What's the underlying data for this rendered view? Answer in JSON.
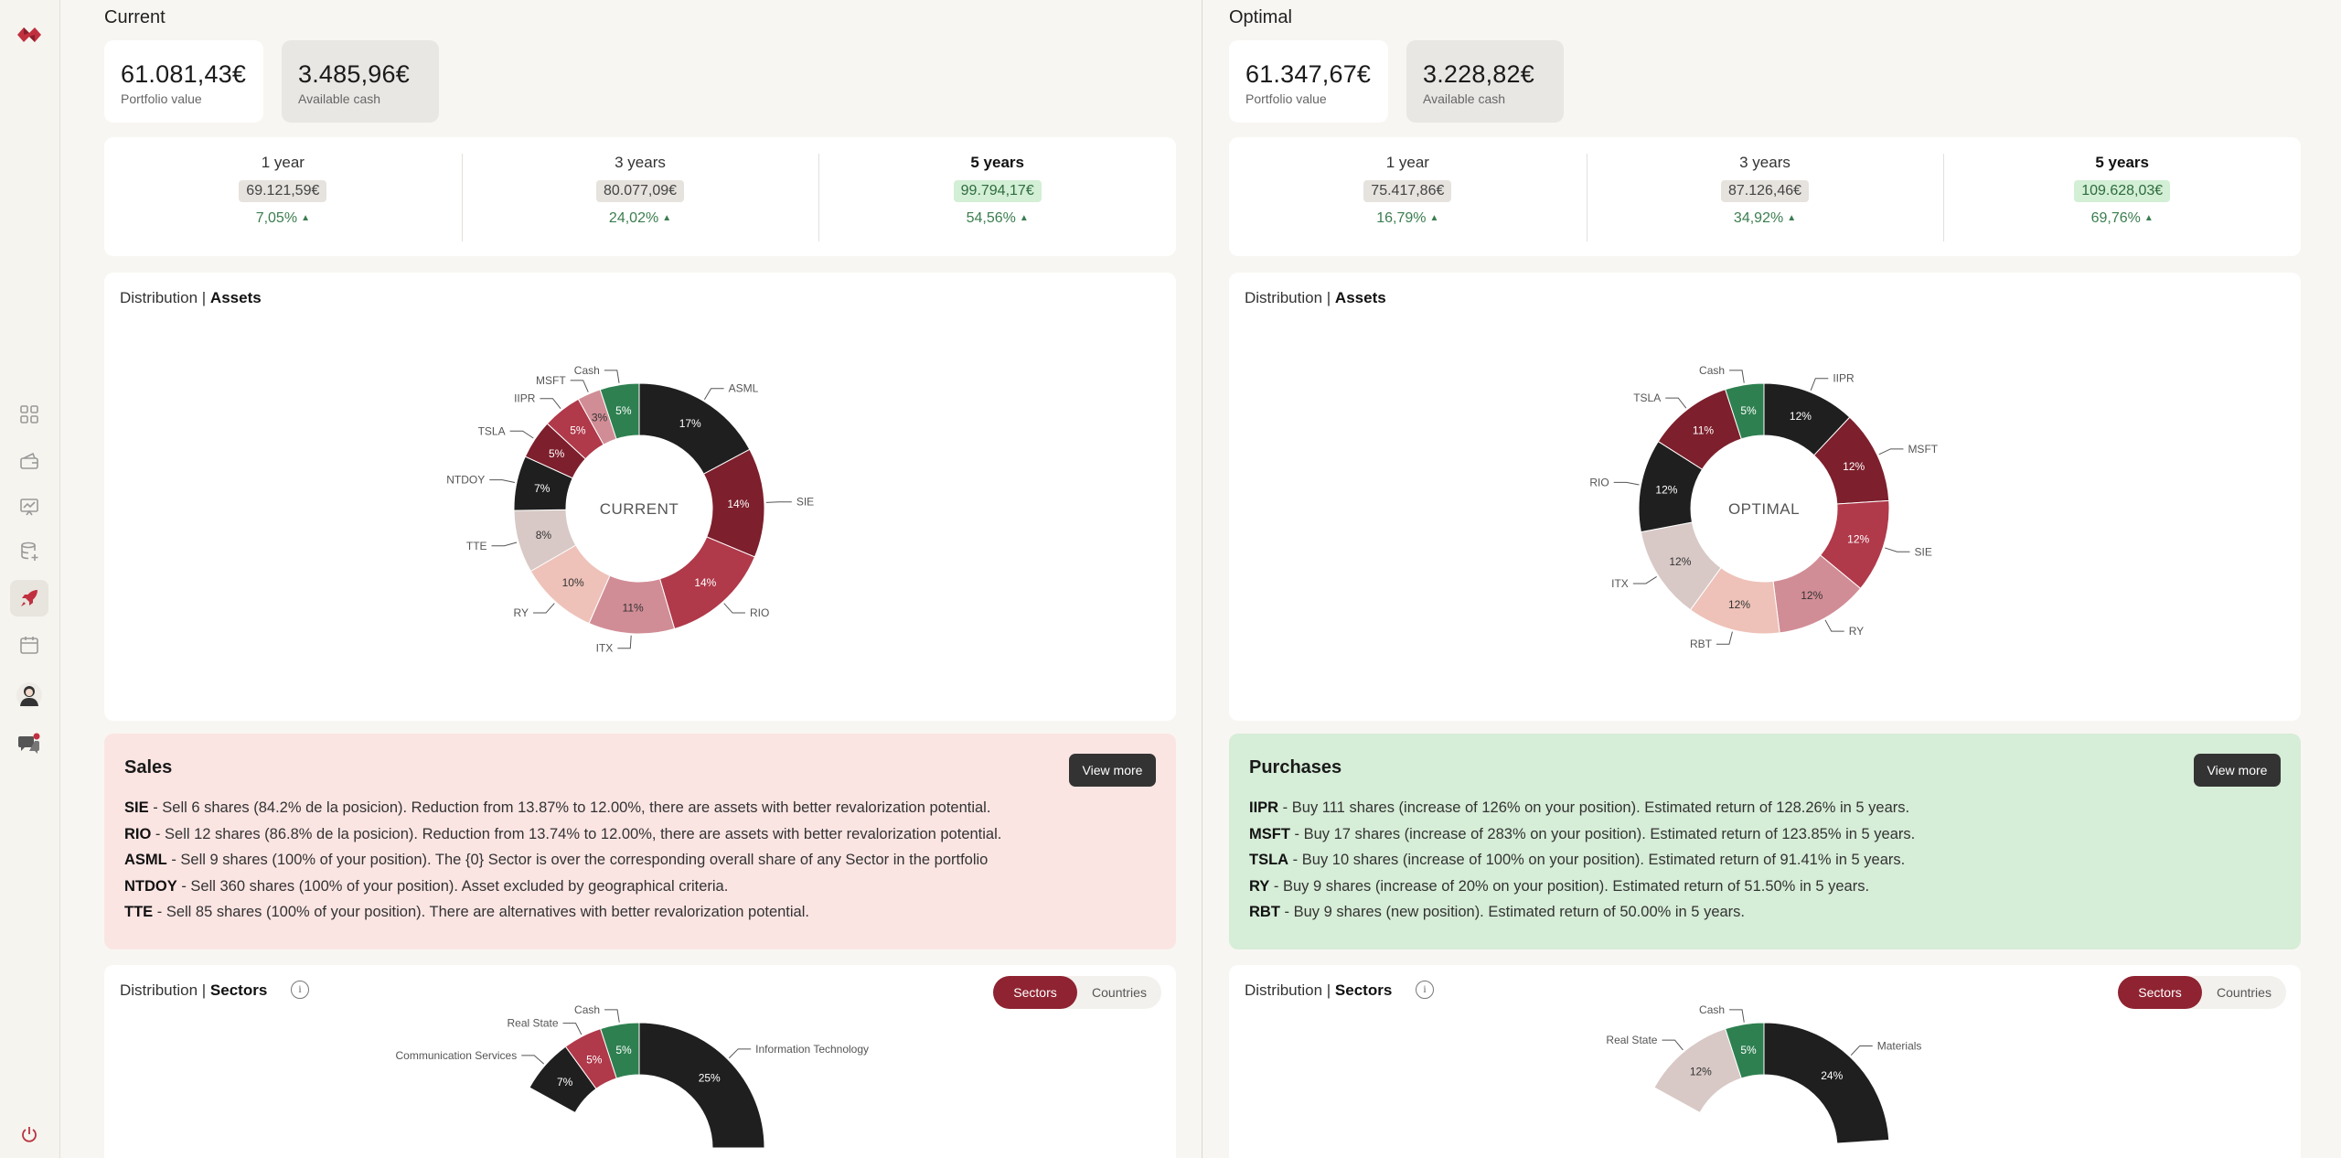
{
  "sidebar": {
    "items": [
      {
        "icon": "logo-icon"
      },
      {
        "icon": "dashboard-grid-icon"
      },
      {
        "icon": "wallet-icon"
      },
      {
        "icon": "presentation-chart-icon"
      },
      {
        "icon": "database-add-icon"
      },
      {
        "icon": "rocket-icon",
        "active": true
      },
      {
        "icon": "calendar-icon"
      },
      {
        "icon": "avatar-icon"
      },
      {
        "icon": "chat-icon"
      },
      {
        "icon": "power-icon"
      }
    ],
    "accent": "#b8333f"
  },
  "current": {
    "title": "Current",
    "portfolio_value": "61.081,43€",
    "portfolio_value_label": "Portfolio value",
    "available_cash": "3.485,96€",
    "available_cash_label": "Available cash",
    "projections": [
      {
        "label": "1 year",
        "value": "69.121,59€",
        "pct": "7,05%"
      },
      {
        "label": "3 years",
        "value": "80.077,09€",
        "pct": "24,02%"
      },
      {
        "label": "5 years",
        "value": "99.794,17€",
        "pct": "54,56%"
      }
    ],
    "assets_title_prefix": "Distribution |",
    "assets_title": "Assets",
    "sales": {
      "title": "Sales",
      "view_more": "View more",
      "items": [
        {
          "ticker": "SIE",
          "text": " - Sell 6 shares (84.2% de la posicion). Reduction from 13.87% to 12.00%, there are assets with better revalorization potential."
        },
        {
          "ticker": "RIO",
          "text": " - Sell 12 shares (86.8% de la posicion). Reduction from 13.74% to 12.00%, there are assets with better revalorization potential."
        },
        {
          "ticker": "ASML",
          "text": " - Sell 9 shares (100% of your position). The {0} Sector is over the corresponding overall share of any Sector in the portfolio"
        },
        {
          "ticker": "NTDOY",
          "text": " - Sell 360 shares (100% of your position). Asset excluded by geographical criteria."
        },
        {
          "ticker": "TTE",
          "text": " - Sell 85 shares (100% of your position). There are alternatives with better revalorization potential."
        }
      ]
    },
    "sectors_title_prefix": "Distribution |",
    "sectors_title": "Sectors",
    "info_icon": "i",
    "toggle": {
      "sectors": "Sectors",
      "countries": "Countries"
    }
  },
  "optimal": {
    "title": "Optimal",
    "portfolio_value": "61.347,67€",
    "portfolio_value_label": "Portfolio value",
    "available_cash": "3.228,82€",
    "available_cash_label": "Available cash",
    "projections": [
      {
        "label": "1 year",
        "value": "75.417,86€",
        "pct": "16,79%"
      },
      {
        "label": "3 years",
        "value": "87.126,46€",
        "pct": "34,92%"
      },
      {
        "label": "5 years",
        "value": "109.628,03€",
        "pct": "69,76%"
      }
    ],
    "assets_title_prefix": "Distribution |",
    "assets_title": "Assets",
    "purchases": {
      "title": "Purchases",
      "view_more": "View more",
      "items": [
        {
          "ticker": "IIPR",
          "text": " - Buy 111 shares (increase of 126% on your position). Estimated return of 128.26% in 5 years."
        },
        {
          "ticker": "MSFT",
          "text": " - Buy 17 shares (increase of 283% on your position). Estimated return of 123.85% in 5 years."
        },
        {
          "ticker": "TSLA",
          "text": " - Buy 10 shares (increase of 100% on your position). Estimated return of 91.41% in 5 years."
        },
        {
          "ticker": "RY",
          "text": " - Buy 9 shares (increase of 20% on your position). Estimated return of 51.50% in 5 years."
        },
        {
          "ticker": "RBT",
          "text": " - Buy 9 shares (new position). Estimated return of 50.00% in 5 years."
        }
      ]
    },
    "sectors_title_prefix": "Distribution |",
    "sectors_title": "Sectors",
    "info_icon": "i",
    "toggle": {
      "sectors": "Sectors",
      "countries": "Countries"
    }
  },
  "chart_data": [
    {
      "type": "pie",
      "donut": true,
      "center_label": "CURRENT",
      "labels": [
        "ASML",
        "SIE",
        "RIO",
        "ITX",
        "RY",
        "TTE",
        "NTDOY",
        "TSLA",
        "IIPR",
        "MSFT",
        "Cash"
      ],
      "values": [
        17,
        14,
        14,
        11,
        10,
        8,
        7,
        5,
        5,
        3,
        5
      ],
      "value_labels": [
        "17%",
        "14%",
        "14%",
        "11%",
        "10%",
        "8%",
        "7%",
        "5%",
        "5%",
        "3%",
        "5%"
      ],
      "colors": [
        "#1f1f1f",
        "#7d1f2c",
        "#b0394a",
        "#d18d96",
        "#eec2b9",
        "#d8c9c6",
        "#1f1f1f",
        "#7d1f2c",
        "#b0394a",
        "#d18d96",
        "#2e8050"
      ]
    },
    {
      "type": "pie",
      "donut": true,
      "center_label": "OPTIMAL",
      "labels": [
        "IIPR",
        "MSFT",
        "SIE",
        "RY",
        "RBT",
        "ITX",
        "RIO",
        "TSLA",
        "Cash"
      ],
      "values": [
        12,
        12,
        12,
        12,
        12,
        12,
        12,
        11,
        5
      ],
      "value_labels": [
        "12%",
        "12%",
        "12%",
        "12%",
        "12%",
        "12%",
        "12%",
        "11%",
        "5%"
      ],
      "colors": [
        "#1f1f1f",
        "#7d1f2c",
        "#b0394a",
        "#d18d96",
        "#eec2b9",
        "#d8c9c6",
        "#1f1f1f",
        "#7d1f2c",
        "#2e8050"
      ]
    },
    {
      "type": "pie",
      "donut": true,
      "partial_view": true,
      "labels": [
        "Information Technology",
        "Communication Services",
        "Real State",
        "Cash"
      ],
      "values": [
        25,
        7,
        5,
        5
      ],
      "value_labels": [
        "25%",
        "7%",
        "5%",
        "5%"
      ],
      "colors": [
        "#1f1f1f",
        "#1f1f1f",
        "#b0394a",
        "#2e8050"
      ]
    },
    {
      "type": "pie",
      "donut": true,
      "partial_view": true,
      "labels": [
        "Materials",
        "Real State",
        "Cash"
      ],
      "values": [
        24,
        12,
        5
      ],
      "value_labels": [
        "24%",
        "12%",
        "5%"
      ],
      "colors": [
        "#1f1f1f",
        "#d8c9c6",
        "#2e8050"
      ]
    }
  ]
}
